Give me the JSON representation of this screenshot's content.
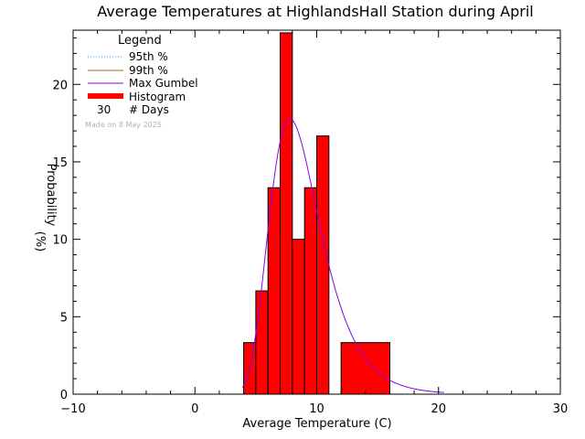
{
  "chart_data": {
    "type": "bar",
    "title": "Average Temperatures at HighlandsHall Station during April",
    "xlabel": "Average Temperature (C)",
    "ylabel_line1": "Probability",
    "ylabel_line2": "(%)",
    "xlim": [
      -10,
      30
    ],
    "ylim": [
      0,
      23.5
    ],
    "xticks": [
      -10,
      0,
      10,
      20,
      30
    ],
    "yticks": [
      0,
      5,
      10,
      15,
      20
    ],
    "grid": false,
    "legend": {
      "title": "Legend",
      "placement": "top-left",
      "entries": [
        {
          "label": "95th %",
          "color": "#1e90ff",
          "style": "dotted"
        },
        {
          "label": "99th %",
          "color": "#b5651d",
          "style": "solid"
        },
        {
          "label": "Max Gumbel",
          "color": "#8a00e6",
          "style": "solid"
        },
        {
          "label": "Histogram",
          "color": "#ff0000",
          "style": "thick"
        }
      ],
      "days_count": "30",
      "days_label": "# Days"
    },
    "note": "Made on 8 May 2025",
    "histogram": {
      "name": "Histogram",
      "color": "#ff0000",
      "bins": [
        {
          "x0": 4,
          "x1": 5,
          "value": 3.33
        },
        {
          "x0": 5,
          "x1": 6,
          "value": 6.67
        },
        {
          "x0": 6,
          "x1": 7,
          "value": 13.33
        },
        {
          "x0": 7,
          "x1": 8,
          "value": 23.33
        },
        {
          "x0": 8,
          "x1": 9,
          "value": 10.0
        },
        {
          "x0": 9,
          "x1": 10,
          "value": 13.33
        },
        {
          "x0": 10,
          "x1": 11,
          "value": 16.67
        },
        {
          "x0": 11,
          "x1": 12,
          "value": 0
        },
        {
          "x0": 12,
          "x1": 16,
          "value": 3.33
        }
      ]
    },
    "gumbel": {
      "name": "Max Gumbel",
      "color": "#8a00e6",
      "mode": 7.8,
      "scale": 2.07,
      "x_range": [
        3.9,
        20.5
      ]
    }
  }
}
